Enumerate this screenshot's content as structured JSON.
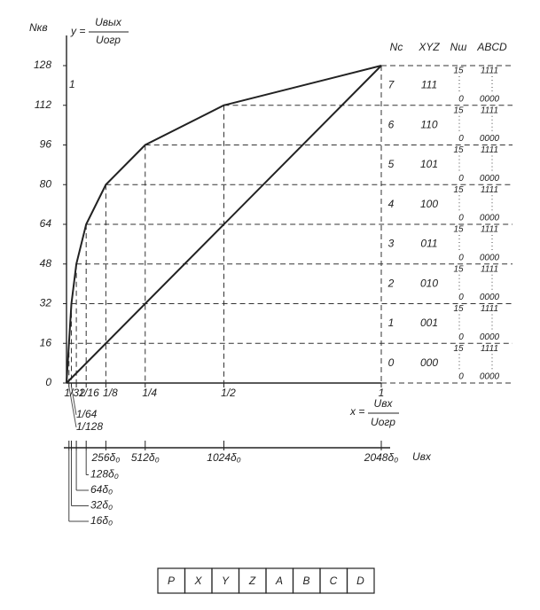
{
  "chart_data": {
    "type": "line",
    "y_axis_label": "Nкв",
    "y_formula": {
      "lhs": "y =",
      "num": "Uвых",
      "den": "Uогр"
    },
    "x_formula": {
      "lhs": "x =",
      "num": "Uвх",
      "den": "Uогр"
    },
    "x2_axis_label": "Uвх",
    "corner_label": "1",
    "xlim": [
      0,
      1
    ],
    "ylim": [
      0,
      128
    ],
    "yticks": [
      0,
      16,
      32,
      48,
      64,
      80,
      96,
      112,
      128
    ],
    "xticks": [
      {
        "value": 0.0078125,
        "label": "1/128"
      },
      {
        "value": 0.015625,
        "label": "1/64"
      },
      {
        "value": 0.03125,
        "label": "1/32"
      },
      {
        "value": 0.0625,
        "label": "1/16"
      },
      {
        "value": 0.125,
        "label": "1/8"
      },
      {
        "value": 0.25,
        "label": "1/4"
      },
      {
        "value": 0.5,
        "label": "1/2"
      },
      1
    ],
    "x2lim": [
      0,
      2048
    ],
    "x2ticks": [
      {
        "value": 16,
        "label": "16δ₀"
      },
      {
        "value": 32,
        "label": "32δ₀"
      },
      {
        "value": 64,
        "label": "64δ₀"
      },
      {
        "value": 128,
        "label": "128δ₀"
      },
      {
        "value": 256,
        "label": "256δ₀"
      },
      {
        "value": 512,
        "label": "512δ₀"
      },
      {
        "value": 1024,
        "label": "1024δ₀"
      },
      {
        "value": 2048,
        "label": "2048δ₀"
      }
    ],
    "series": [
      {
        "x": [
          0,
          0.0078125,
          0.015625,
          0.03125,
          0.0625,
          0.125,
          0.25,
          0.5,
          1
        ],
        "values": [
          0,
          16,
          32,
          48,
          64,
          80,
          96,
          112,
          128
        ],
        "color": "#222"
      },
      {
        "x": [
          0,
          1
        ],
        "values": [
          0,
          128
        ],
        "color": "#222"
      }
    ]
  },
  "code_table": {
    "headers": [
      "Nc",
      "XYZ",
      "Nш",
      "ABCD"
    ],
    "rows": [
      {
        "nc": "7",
        "xyz": "111",
        "n_max": "15",
        "n_min": "0",
        "abcd_max": "1111",
        "abcd_min": "0000"
      },
      {
        "nc": "6",
        "xyz": "110",
        "n_max": "15",
        "n_min": "0",
        "abcd_max": "1111",
        "abcd_min": "0000"
      },
      {
        "nc": "5",
        "xyz": "101",
        "n_max": "15",
        "n_min": "0",
        "abcd_max": "1111",
        "abcd_min": "0000"
      },
      {
        "nc": "4",
        "xyz": "100",
        "n_max": "15",
        "n_min": "0",
        "abcd_max": "1111",
        "abcd_min": "0000"
      },
      {
        "nc": "3",
        "xyz": "011",
        "n_max": "15",
        "n_min": "0",
        "abcd_max": "1111",
        "abcd_min": "0000"
      },
      {
        "nc": "2",
        "xyz": "010",
        "n_max": "15",
        "n_min": "0",
        "abcd_max": "1111",
        "abcd_min": "0000"
      },
      {
        "nc": "1",
        "xyz": "001",
        "n_max": "15",
        "n_min": "0",
        "abcd_max": "1111",
        "abcd_min": "0000"
      },
      {
        "nc": "0",
        "xyz": "000",
        "n_max": "15",
        "n_min": "0",
        "abcd_max": "1111",
        "abcd_min": "0000"
      }
    ]
  },
  "code_word": [
    "P",
    "X",
    "Y",
    "Z",
    "A",
    "B",
    "C",
    "D"
  ]
}
